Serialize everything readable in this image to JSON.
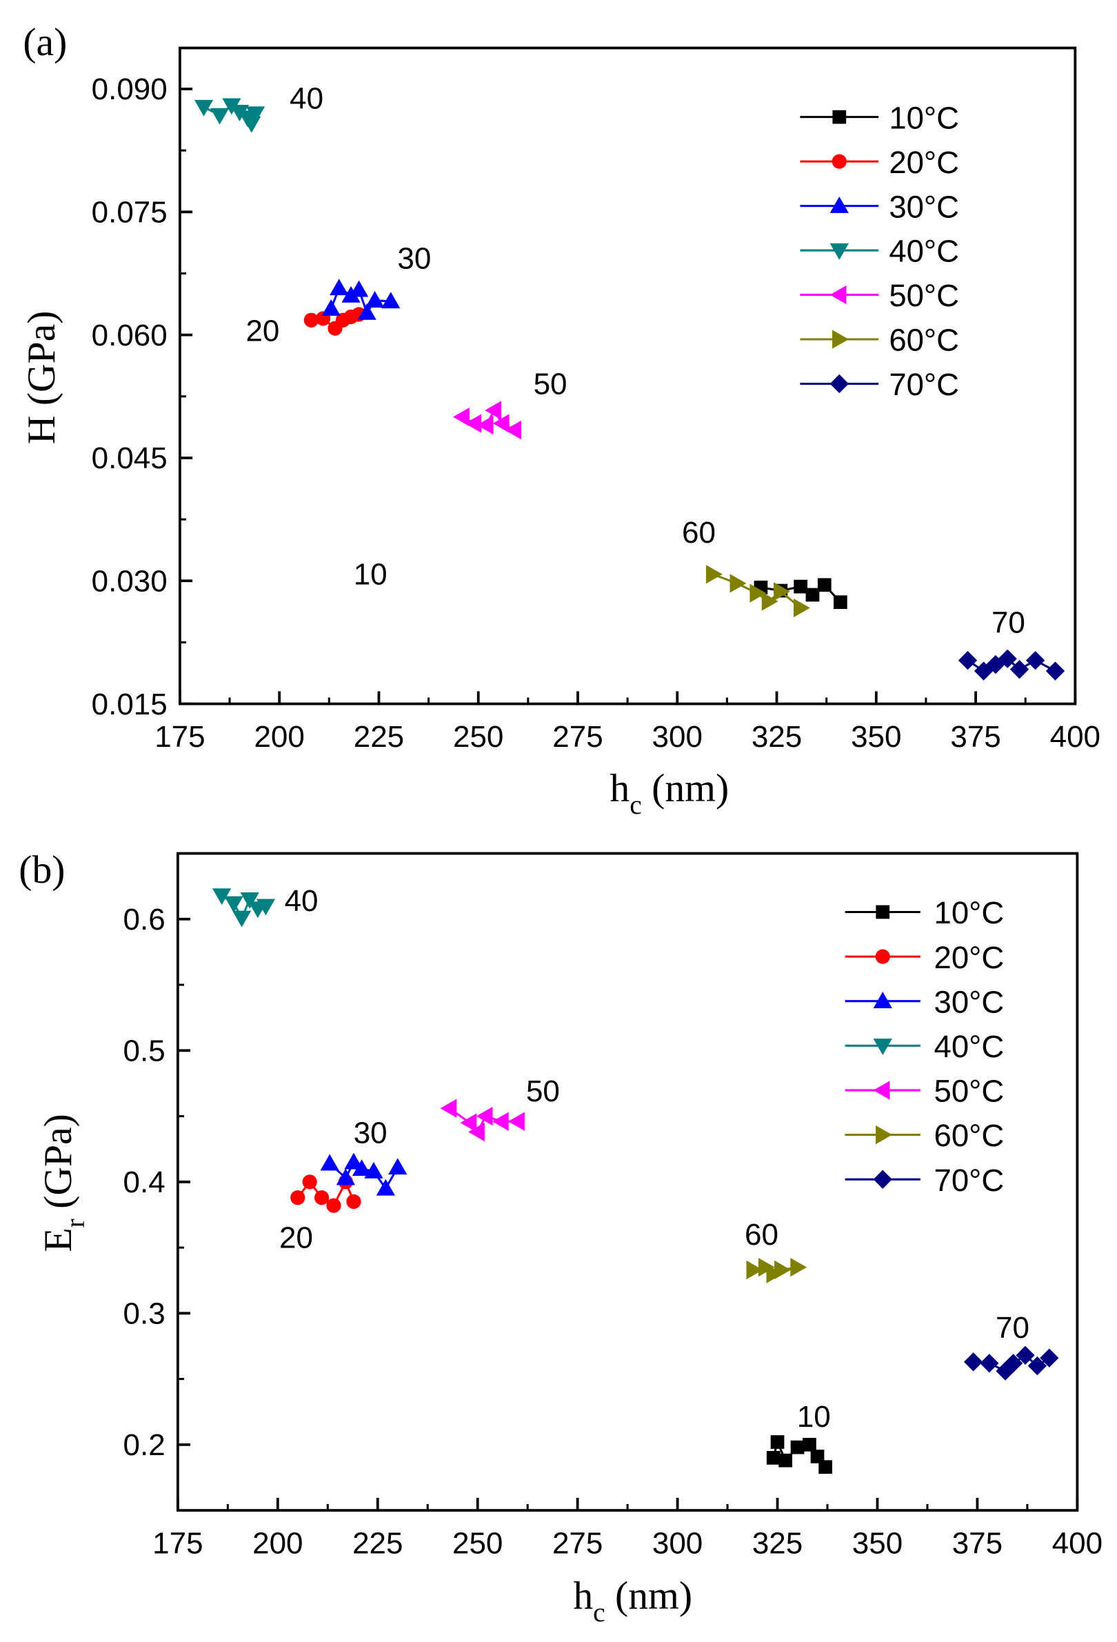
{
  "chart_data": [
    {
      "type": "scatter",
      "panel_label": "(a)",
      "xlabel": "h",
      "xlabel_sub": "c",
      "xlabel_unit": " (nm)",
      "ylabel": "H (GPa)",
      "ylabel_sub": "",
      "ylabel_unit": "",
      "xlim": [
        175,
        400
      ],
      "ylim": [
        0.015,
        0.095
      ],
      "xticks": [
        175,
        200,
        225,
        250,
        275,
        300,
        325,
        350,
        375,
        400
      ],
      "xtick_labels": [
        "175",
        "200",
        "225",
        "250",
        "275",
        "300",
        "325",
        "350",
        "375",
        "400"
      ],
      "yticks": [
        0.015,
        0.03,
        0.045,
        0.06,
        0.075,
        0.09
      ],
      "ytick_labels": [
        "0.015",
        "0.030",
        "0.045",
        "0.060",
        "0.075",
        "0.090"
      ],
      "legend_placement": "top-right",
      "series": [
        {
          "name": "10°C",
          "color": "#000000",
          "marker": "square",
          "label": "10",
          "x": [
            321,
            326,
            331,
            334,
            337,
            341
          ],
          "y": [
            0.0292,
            0.0288,
            0.0293,
            0.0283,
            0.0295,
            0.0274
          ]
        },
        {
          "name": "20°C",
          "color": "#ff0000",
          "marker": "circle",
          "label": "20",
          "x": [
            208,
            211,
            214,
            216,
            218,
            220
          ],
          "y": [
            0.0618,
            0.062,
            0.0608,
            0.0618,
            0.0622,
            0.0625
          ]
        },
        {
          "name": "30°C",
          "color": "#0000ff",
          "marker": "triangle-up",
          "label": "30",
          "x": [
            213,
            215,
            218,
            220,
            222,
            224,
            228
          ],
          "y": [
            0.0632,
            0.0657,
            0.0648,
            0.0655,
            0.0627,
            0.0642,
            0.0641
          ]
        },
        {
          "name": "40°C",
          "color": "#008080",
          "marker": "triangle-down",
          "label": "40",
          "x": [
            181,
            185,
            188,
            190,
            192,
            193,
            194
          ],
          "y": [
            0.0878,
            0.0868,
            0.088,
            0.0872,
            0.0865,
            0.0858,
            0.087
          ]
        },
        {
          "name": "50°C",
          "color": "#ff00ff",
          "marker": "triangle-left",
          "label": "50",
          "x": [
            246,
            249,
            252,
            254,
            256,
            259
          ],
          "y": [
            0.05,
            0.0492,
            0.049,
            0.0508,
            0.0492,
            0.0484
          ]
        },
        {
          "name": "60°C",
          "color": "#808000",
          "marker": "triangle-right",
          "label": "60",
          "x": [
            309,
            315,
            320,
            323,
            326,
            331
          ],
          "y": [
            0.0308,
            0.0297,
            0.0285,
            0.0275,
            0.0287,
            0.0267
          ]
        },
        {
          "name": "70°C",
          "color": "#000080",
          "marker": "diamond",
          "label": "70",
          "x": [
            373,
            377,
            380,
            383,
            386,
            390,
            395
          ],
          "y": [
            0.0203,
            0.019,
            0.0198,
            0.0205,
            0.0192,
            0.0203,
            0.019
          ]
        }
      ]
    },
    {
      "type": "scatter",
      "panel_label": "(b)",
      "xlabel": "h",
      "xlabel_sub": "c",
      "xlabel_unit": " (nm)",
      "ylabel": "E",
      "ylabel_sub": "r",
      "ylabel_unit": " (GPa)",
      "xlim": [
        175,
        400
      ],
      "ylim": [
        0.15,
        0.65
      ],
      "xticks": [
        175,
        200,
        225,
        250,
        275,
        300,
        325,
        350,
        375,
        400
      ],
      "xtick_labels": [
        "175",
        "200",
        "225",
        "250",
        "275",
        "300",
        "325",
        "350",
        "375",
        "400"
      ],
      "yticks": [
        0.2,
        0.3,
        0.4,
        0.5,
        0.6
      ],
      "ytick_labels": [
        "0.2",
        "0.3",
        "0.4",
        "0.5",
        "0.6"
      ],
      "legend_placement": "top-right",
      "series": [
        {
          "name": "10°C",
          "color": "#000000",
          "marker": "square",
          "label": "10",
          "x": [
            324,
            325,
            327,
            330,
            333,
            335,
            337
          ],
          "y": [
            0.19,
            0.202,
            0.188,
            0.198,
            0.2,
            0.191,
            0.183
          ]
        },
        {
          "name": "20°C",
          "color": "#ff0000",
          "marker": "circle",
          "label": "20",
          "x": [
            205,
            208,
            211,
            214,
            217,
            219
          ],
          "y": [
            0.388,
            0.4,
            0.388,
            0.382,
            0.4,
            0.385
          ]
        },
        {
          "name": "30°C",
          "color": "#0000ff",
          "marker": "triangle-up",
          "label": "30",
          "x": [
            213,
            217,
            219,
            221,
            224,
            227,
            230
          ],
          "y": [
            0.414,
            0.403,
            0.415,
            0.41,
            0.408,
            0.395,
            0.411
          ]
        },
        {
          "name": "40°C",
          "color": "#008080",
          "marker": "triangle-down",
          "label": "40",
          "x": [
            186,
            189,
            191,
            193,
            195,
            197
          ],
          "y": [
            0.618,
            0.612,
            0.601,
            0.615,
            0.608,
            0.61
          ]
        },
        {
          "name": "50°C",
          "color": "#ff00ff",
          "marker": "triangle-left",
          "label": "50",
          "x": [
            243,
            248,
            250,
            252,
            256,
            260
          ],
          "y": [
            0.456,
            0.445,
            0.438,
            0.45,
            0.446,
            0.446
          ]
        },
        {
          "name": "60°C",
          "color": "#808000",
          "marker": "triangle-right",
          "label": "60",
          "x": [
            319,
            322,
            324,
            326,
            330
          ],
          "y": [
            0.333,
            0.335,
            0.33,
            0.333,
            0.335
          ]
        },
        {
          "name": "70°C",
          "color": "#000080",
          "marker": "diamond",
          "label": "70",
          "x": [
            374,
            378,
            382,
            384,
            387,
            390,
            393
          ],
          "y": [
            0.263,
            0.262,
            0.256,
            0.262,
            0.268,
            0.26,
            0.266
          ]
        }
      ]
    }
  ]
}
